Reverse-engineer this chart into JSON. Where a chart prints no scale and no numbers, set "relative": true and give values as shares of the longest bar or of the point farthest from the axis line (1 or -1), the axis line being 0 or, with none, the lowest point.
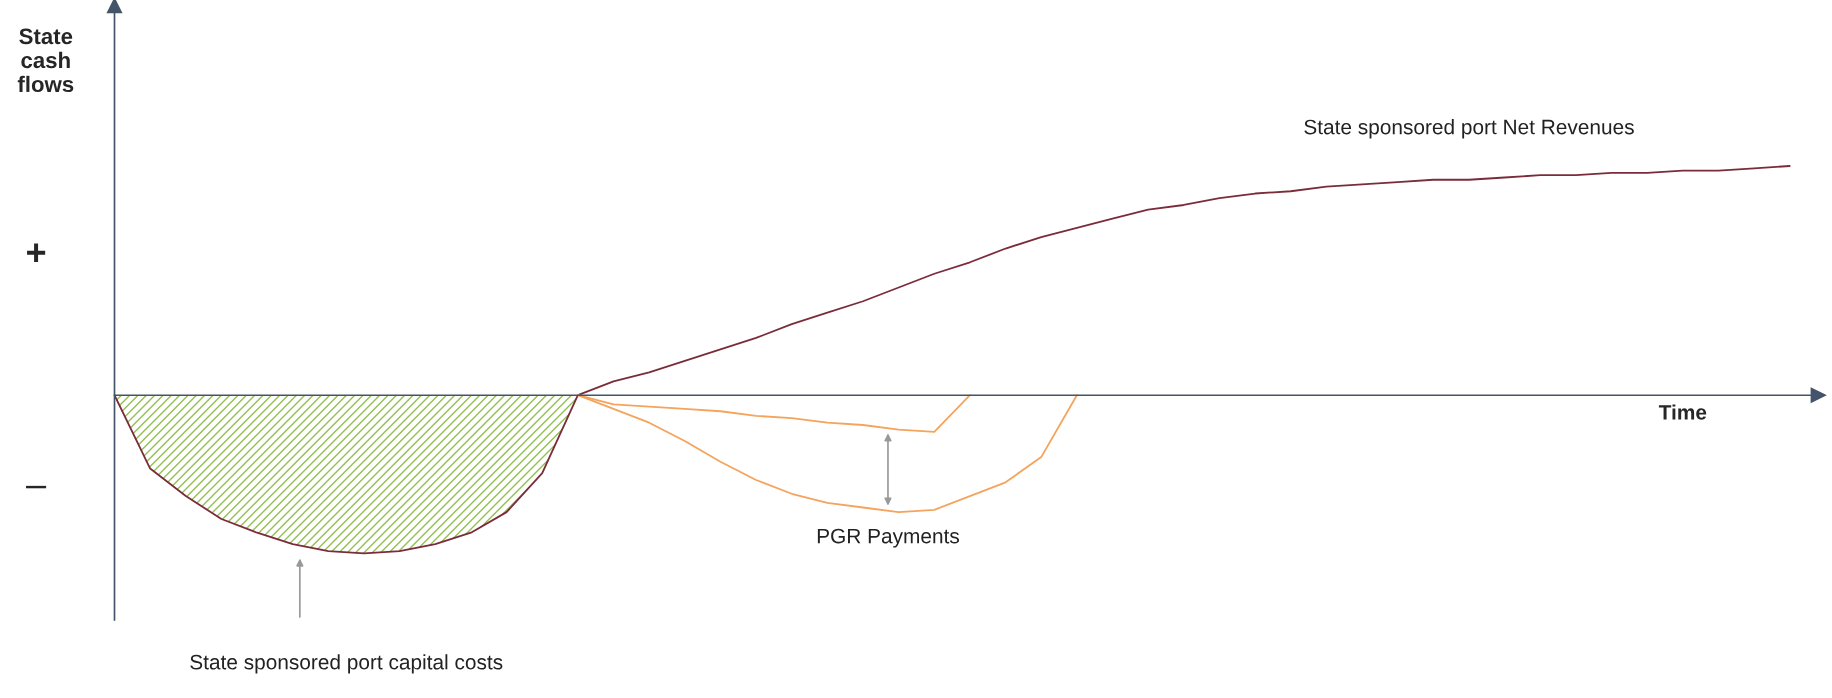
{
  "chart_data": {
    "type": "line",
    "relative": true,
    "xlabel": "Time",
    "ylabel": "State cash flows",
    "categories": [
      null,
      null,
      null,
      null,
      null,
      null,
      null,
      null,
      null,
      null,
      null,
      null,
      null,
      null,
      null,
      null,
      null,
      null,
      null,
      null,
      null,
      null,
      null,
      null,
      null,
      null,
      null,
      null,
      null,
      null,
      null,
      null,
      null,
      null,
      null,
      null,
      null,
      null,
      null,
      null,
      null,
      null,
      null,
      null,
      null,
      null,
      null,
      null
    ],
    "series": [
      {
        "color": "#7b2c3a",
        "values": [
          0,
          -0.32,
          -0.44,
          -0.54,
          -0.6,
          -0.65,
          -0.68,
          -0.69,
          -0.68,
          -0.65,
          -0.6,
          -0.51,
          -0.34,
          0,
          0.06,
          0.1,
          0.15,
          0.2,
          0.25,
          0.31,
          0.36,
          0.41,
          0.47,
          0.53,
          0.58,
          0.64,
          0.69,
          0.73,
          0.77,
          0.81,
          0.83,
          0.86,
          0.88,
          0.89,
          0.91,
          0.92,
          0.93,
          0.94,
          0.94,
          0.95,
          0.96,
          0.96,
          0.97,
          0.97,
          0.98,
          0.98,
          0.99,
          1
        ]
      },
      {
        "color": "#f4a45c",
        "values": [
          null,
          null,
          null,
          null,
          null,
          null,
          null,
          null,
          null,
          null,
          null,
          null,
          null,
          0,
          -0.04,
          -0.05,
          -0.06,
          -0.07,
          -0.09,
          -0.1,
          -0.12,
          -0.13,
          -0.15,
          -0.16,
          0,
          null,
          null,
          null,
          null,
          null,
          null,
          null,
          null,
          null,
          null,
          null,
          null,
          null,
          null,
          null,
          null,
          null,
          null,
          null,
          null,
          null,
          null,
          null
        ]
      },
      {
        "color": "#f4a45c",
        "values": [
          null,
          null,
          null,
          null,
          null,
          null,
          null,
          null,
          null,
          null,
          null,
          null,
          null,
          0,
          -0.06,
          -0.12,
          -0.2,
          -0.29,
          -0.37,
          -0.43,
          -0.47,
          -0.49,
          -0.51,
          -0.5,
          -0.44,
          -0.38,
          -0.27,
          0,
          null,
          null,
          null,
          null,
          null,
          null,
          null,
          null,
          null,
          null,
          null,
          null,
          null,
          null,
          null,
          null,
          null,
          null,
          null,
          null
        ]
      },
      {
        "type": "area",
        "color": "#92c050",
        "values": [
          0,
          -0.32,
          -0.44,
          -0.54,
          -0.6,
          -0.65,
          -0.68,
          -0.69,
          -0.68,
          -0.65,
          -0.6,
          -0.51,
          -0.34,
          0,
          null,
          null,
          null,
          null,
          null,
          null,
          null,
          null,
          null,
          null,
          null,
          null,
          null,
          null,
          null,
          null,
          null,
          null,
          null,
          null,
          null,
          null,
          null,
          null,
          null,
          null,
          null,
          null,
          null,
          null,
          null,
          null,
          null,
          null
        ]
      }
    ],
    "annotations": [
      "PGR Payments",
      "+",
      "–",
      "State sponsored port Net Revenues",
      "State sponsored port capital costs"
    ],
    "legend": false,
    "marker": "none",
    "line_style": "solid"
  }
}
